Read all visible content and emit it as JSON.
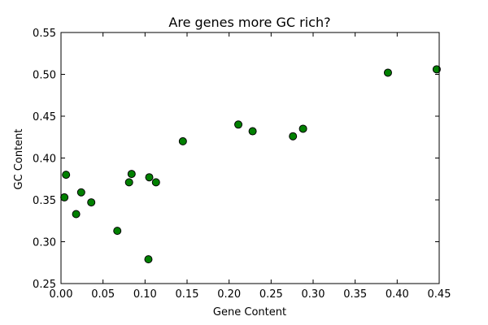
{
  "chart_data": {
    "type": "scatter",
    "title": "Are genes more GC rich?",
    "xlabel": "Gene Content",
    "ylabel": "GC Content",
    "xlim": [
      0.0,
      0.45
    ],
    "ylim": [
      0.25,
      0.55
    ],
    "x_ticks": [
      0.0,
      0.05,
      0.1,
      0.15,
      0.2,
      0.25,
      0.3,
      0.35,
      0.4,
      0.45
    ],
    "x_tick_labels": [
      "0.00",
      "0.05",
      "0.10",
      "0.15",
      "0.20",
      "0.25",
      "0.30",
      "0.35",
      "0.40",
      "0.45"
    ],
    "y_ticks": [
      0.25,
      0.3,
      0.35,
      0.4,
      0.45,
      0.5,
      0.55
    ],
    "y_tick_labels": [
      "0.25",
      "0.30",
      "0.35",
      "0.40",
      "0.45",
      "0.50",
      "0.55"
    ],
    "grid": false,
    "marker_color": "#008000",
    "marker_edge_color": "#000000",
    "points": [
      {
        "x": 0.004,
        "y": 0.353
      },
      {
        "x": 0.006,
        "y": 0.38
      },
      {
        "x": 0.018,
        "y": 0.333
      },
      {
        "x": 0.024,
        "y": 0.359
      },
      {
        "x": 0.036,
        "y": 0.347
      },
      {
        "x": 0.067,
        "y": 0.313
      },
      {
        "x": 0.081,
        "y": 0.371
      },
      {
        "x": 0.084,
        "y": 0.381
      },
      {
        "x": 0.104,
        "y": 0.279
      },
      {
        "x": 0.105,
        "y": 0.377
      },
      {
        "x": 0.113,
        "y": 0.371
      },
      {
        "x": 0.145,
        "y": 0.42
      },
      {
        "x": 0.211,
        "y": 0.44
      },
      {
        "x": 0.228,
        "y": 0.432
      },
      {
        "x": 0.276,
        "y": 0.426
      },
      {
        "x": 0.288,
        "y": 0.435
      },
      {
        "x": 0.389,
        "y": 0.502
      },
      {
        "x": 0.447,
        "y": 0.506
      }
    ]
  }
}
